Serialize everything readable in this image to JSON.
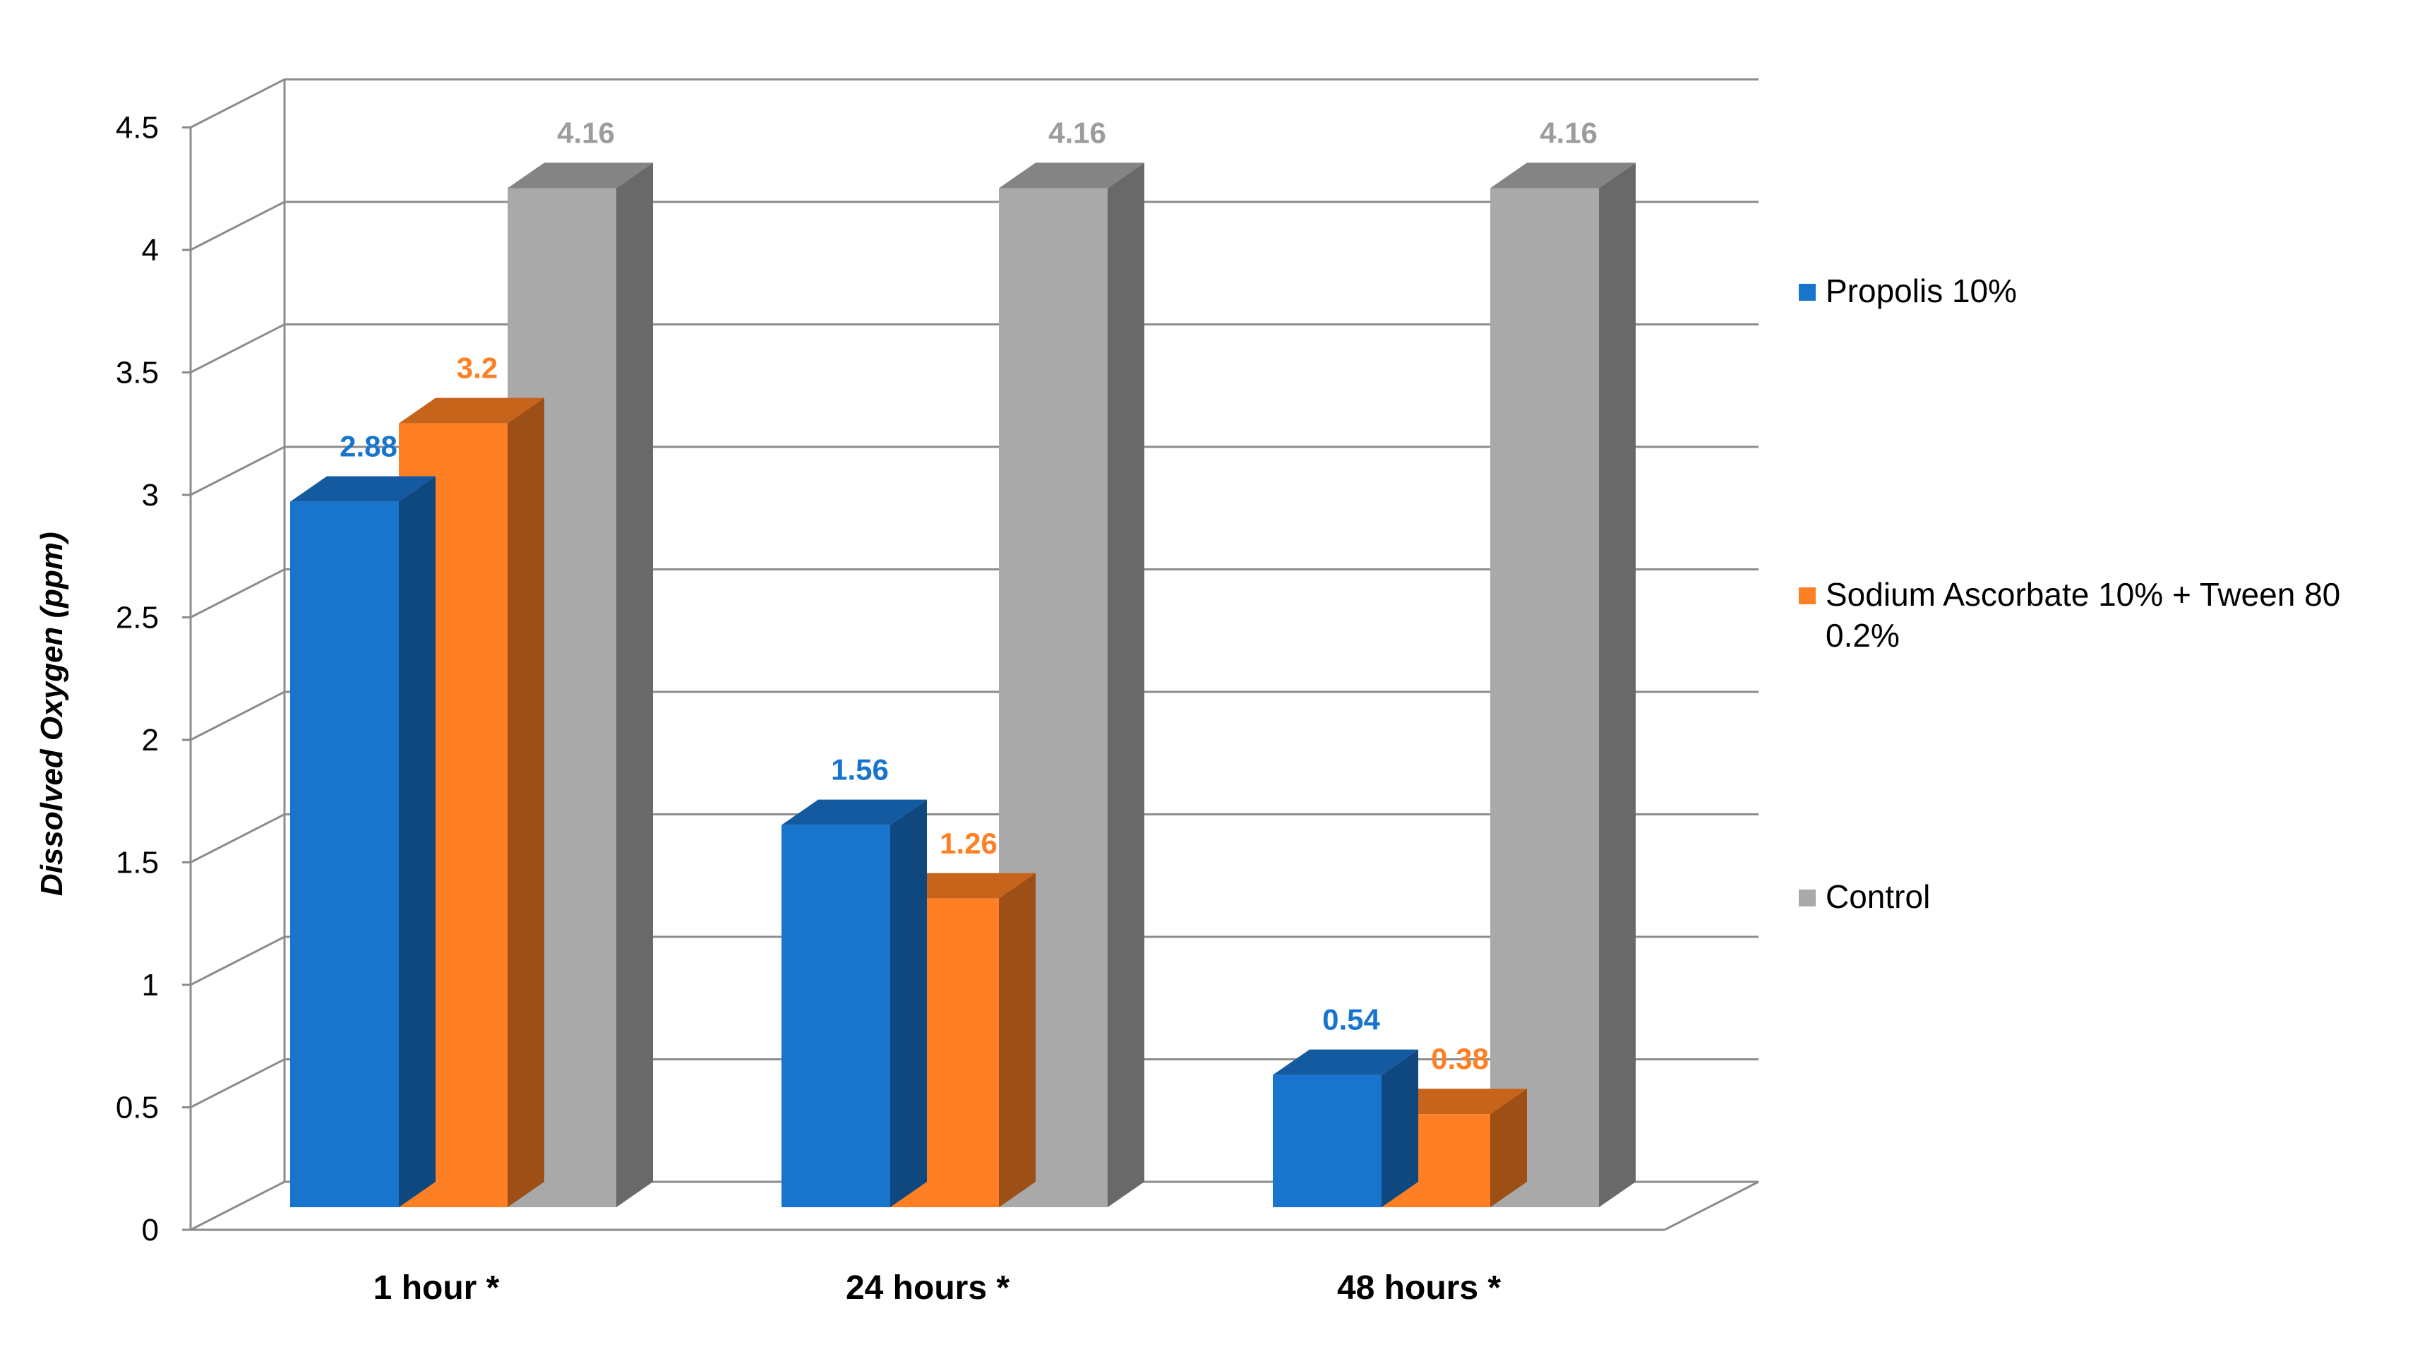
{
  "chart_data": {
    "type": "bar",
    "three_d": true,
    "title": "",
    "xlabel": "",
    "ylabel": "Dissolved Oxygen (ppm)",
    "categories": [
      "1 hour *",
      "24 hours *",
      "48 hours *"
    ],
    "series": [
      {
        "name": "Propolis 10%",
        "values": [
          2.88,
          1.56,
          0.54
        ],
        "color": "#1874CD",
        "labels": [
          "2.88",
          "1.56",
          "0.54"
        ]
      },
      {
        "name": "Sodium Ascorbate 10% + Tween 80 0.2%",
        "legend_lines": [
          "Sodium Ascorbate 10% + Tween 80",
          "0.2%"
        ],
        "values": [
          3.2,
          1.26,
          0.38
        ],
        "color": "#FF8024",
        "labels": [
          "3.2",
          "1.26",
          "0.38"
        ]
      },
      {
        "name": "Control",
        "values": [
          4.16,
          4.16,
          4.16
        ],
        "color": "#A9A9A9",
        "labels": [
          "4.16",
          "4.16",
          "4.16"
        ]
      }
    ],
    "ylim": [
      0,
      4.5
    ],
    "yticks": [
      "0",
      "0.5",
      "1",
      "1.5",
      "2",
      "2.5",
      "3",
      "3.5",
      "4",
      "4.5"
    ],
    "grid": true,
    "legend_position": "right"
  }
}
